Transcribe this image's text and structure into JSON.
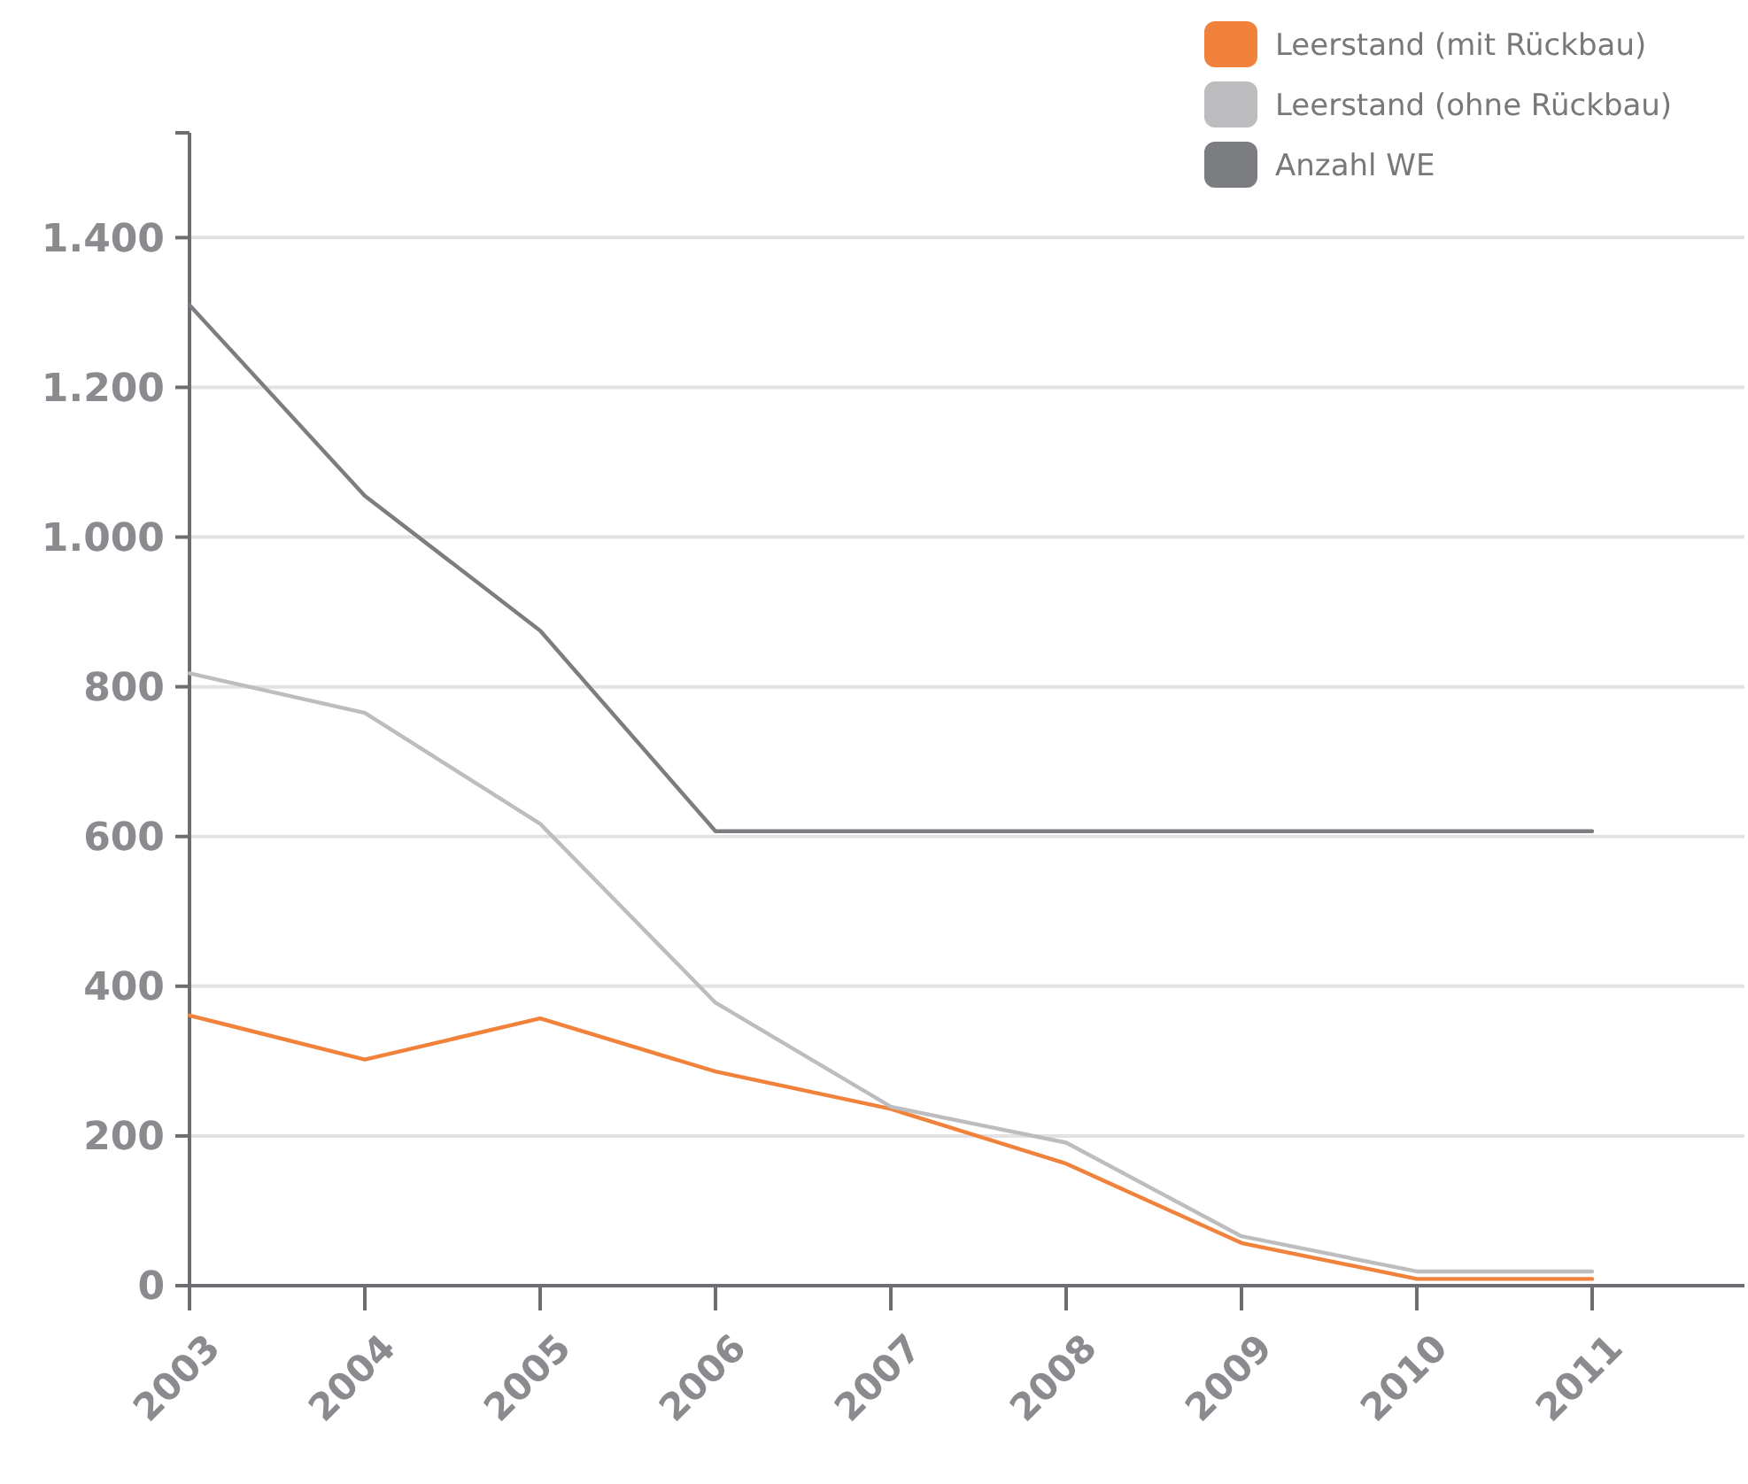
{
  "chart_data": {
    "type": "line",
    "categories": [
      "2003",
      "2004",
      "2005",
      "2006",
      "2007",
      "2008",
      "2009",
      "2010",
      "2011"
    ],
    "series": [
      {
        "name": "Leerstand (mit Rückbau)",
        "color": "#f0823c",
        "values": [
          361,
          302,
          357,
          286,
          236,
          163,
          57,
          9,
          9
        ]
      },
      {
        "name": "Leerstand (ohne Rückbau)",
        "color": "#bdbdc0",
        "values": [
          818,
          765,
          617,
          378,
          239,
          191,
          66,
          19,
          19
        ]
      },
      {
        "name": "Anzahl WE",
        "color": "#7c7d80",
        "values": [
          1310,
          1055,
          875,
          607,
          607,
          607,
          607,
          607,
          607
        ]
      }
    ],
    "ylim": [
      0,
      1540
    ],
    "yticks": [
      {
        "value": 0,
        "label": "0"
      },
      {
        "value": 200,
        "label": "200"
      },
      {
        "value": 400,
        "label": "400"
      },
      {
        "value": 600,
        "label": "600"
      },
      {
        "value": 800,
        "label": "800"
      },
      {
        "value": 1000,
        "label": "1.000"
      },
      {
        "value": 1200,
        "label": "1.200"
      },
      {
        "value": 1400,
        "label": "1.400"
      }
    ],
    "grid": "y",
    "legend": "top right",
    "marker": "none",
    "line_style": "solid"
  }
}
